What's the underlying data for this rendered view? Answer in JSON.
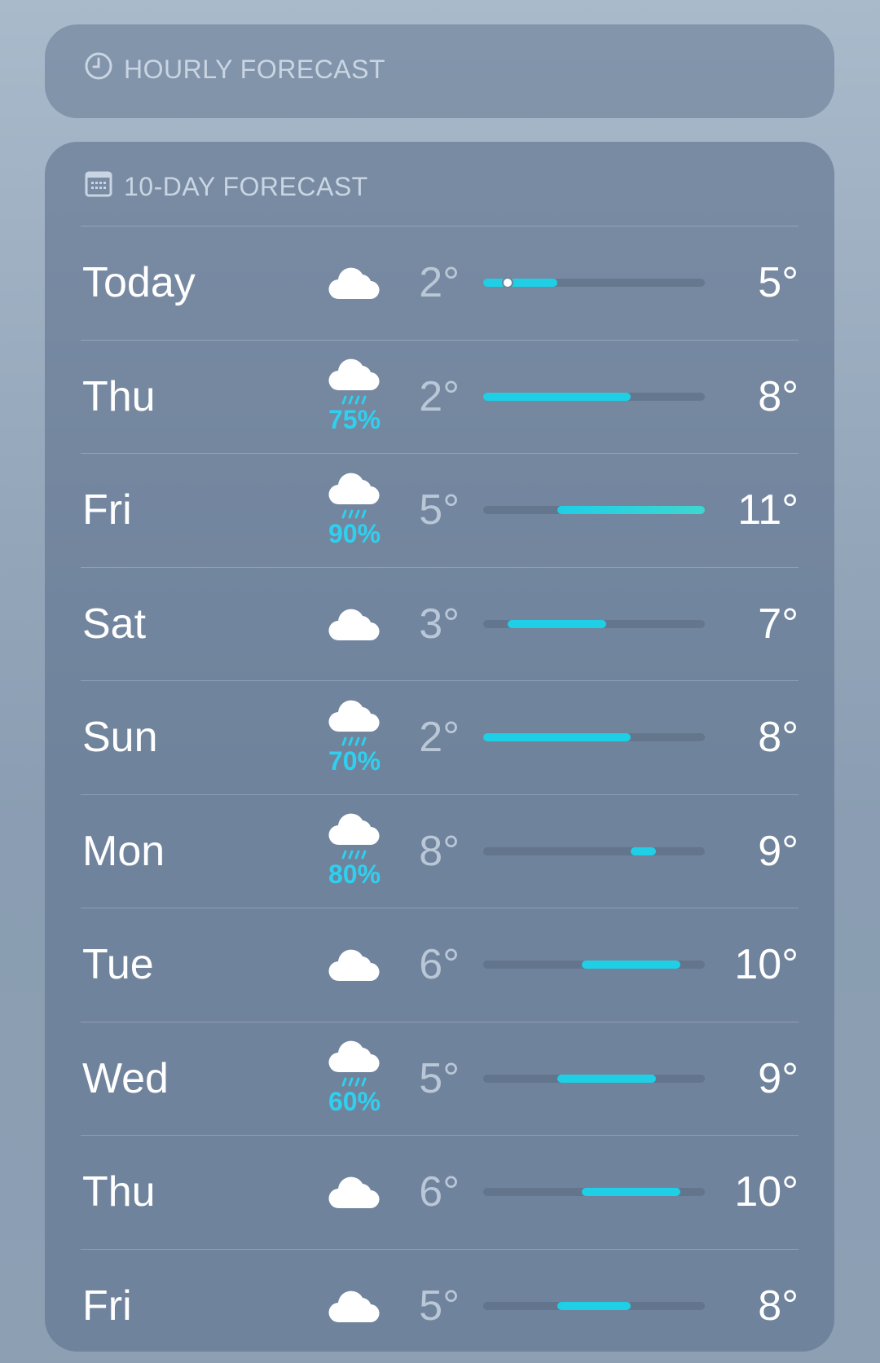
{
  "hourly": {
    "title": "HOURLY FORECAST",
    "icon": "clock-icon"
  },
  "tenday": {
    "title": "10-DAY FORECAST",
    "icon": "calendar-icon",
    "range_min": 2,
    "range_max": 11,
    "bar_color": "#1ecfe6",
    "days": [
      {
        "day": "Today",
        "icon": "cloud-icon",
        "pop": "",
        "low": "2°",
        "high": "5°",
        "lo": 2,
        "hi": 5,
        "current": 3
      },
      {
        "day": "Thu",
        "icon": "cloud-rain-icon",
        "pop": "75%",
        "low": "2°",
        "high": "8°",
        "lo": 2,
        "hi": 8
      },
      {
        "day": "Fri",
        "icon": "cloud-rain-icon",
        "pop": "90%",
        "low": "5°",
        "high": "11°",
        "lo": 5,
        "hi": 11
      },
      {
        "day": "Sat",
        "icon": "cloud-icon",
        "pop": "",
        "low": "3°",
        "high": "7°",
        "lo": 3,
        "hi": 7
      },
      {
        "day": "Sun",
        "icon": "cloud-rain-icon",
        "pop": "70%",
        "low": "2°",
        "high": "8°",
        "lo": 2,
        "hi": 8
      },
      {
        "day": "Mon",
        "icon": "cloud-rain-icon",
        "pop": "80%",
        "low": "8°",
        "high": "9°",
        "lo": 8,
        "hi": 9
      },
      {
        "day": "Tue",
        "icon": "cloud-icon",
        "pop": "",
        "low": "6°",
        "high": "10°",
        "lo": 6,
        "hi": 10
      },
      {
        "day": "Wed",
        "icon": "cloud-rain-icon",
        "pop": "60%",
        "low": "5°",
        "high": "9°",
        "lo": 5,
        "hi": 9
      },
      {
        "day": "Thu",
        "icon": "cloud-icon",
        "pop": "",
        "low": "6°",
        "high": "10°",
        "lo": 6,
        "hi": 10
      },
      {
        "day": "Fri",
        "icon": "cloud-icon",
        "pop": "",
        "low": "5°",
        "high": "8°",
        "lo": 5,
        "hi": 8
      }
    ]
  }
}
